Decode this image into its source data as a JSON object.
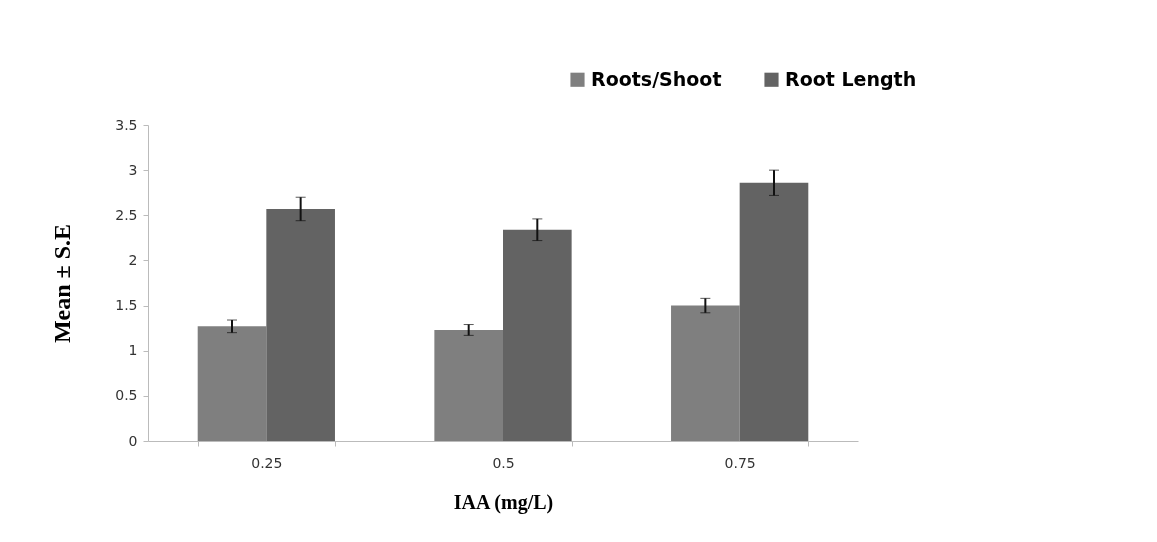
{
  "chart_data": {
    "type": "bar",
    "xlabel": "IAA    (mg/L)",
    "ylabel": "Mean ± S.E",
    "categories": [
      "0.25",
      "0.5",
      "0.75"
    ],
    "series": [
      {
        "name": "Roots/Shoot",
        "color": "#7f7f7f",
        "values": [
          1.27,
          1.23,
          1.5
        ],
        "errors": [
          0.07,
          0.06,
          0.08
        ]
      },
      {
        "name": "Root Length",
        "color": "#636363",
        "values": [
          2.57,
          2.34,
          2.86
        ],
        "errors": [
          0.13,
          0.12,
          0.14
        ]
      }
    ],
    "ylim": [
      0,
      3.5
    ],
    "yticks": [
      {
        "value": 0,
        "label": "0"
      },
      0.5,
      {
        "value": 1,
        "label": "1"
      },
      1.5,
      {
        "value": 2,
        "label": "2"
      },
      2.5,
      {
        "value": 3,
        "label": "3"
      },
      3.5
    ],
    "grid": false,
    "legend": "top right"
  }
}
